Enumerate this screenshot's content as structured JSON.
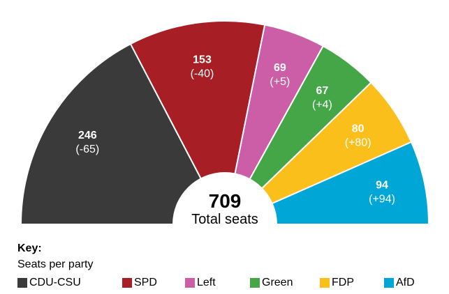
{
  "chart_data": {
    "type": "pie",
    "subtype": "semicircle-donut",
    "total": {
      "value": "709",
      "label": "Total seats"
    },
    "slices": [
      {
        "name": "CDU-CSU",
        "value": 246,
        "change": "(-65)",
        "color": "#3a3a3a"
      },
      {
        "name": "SPD",
        "value": 153,
        "change": "(-40)",
        "color": "#a71f24"
      },
      {
        "name": "Left",
        "value": 69,
        "change": "(+5)",
        "color": "#cc5ea8"
      },
      {
        "name": "Green",
        "value": 67,
        "change": "(+4)",
        "color": "#45a648"
      },
      {
        "name": "FDP",
        "value": 80,
        "change": "(+80)",
        "color": "#fbbf1c"
      },
      {
        "name": "AfD",
        "value": 94,
        "change": "(+94)",
        "color": "#00a7d6"
      }
    ],
    "legend_position": "bottom"
  },
  "key": {
    "title": "Key:",
    "subtitle": "Seats per party"
  }
}
